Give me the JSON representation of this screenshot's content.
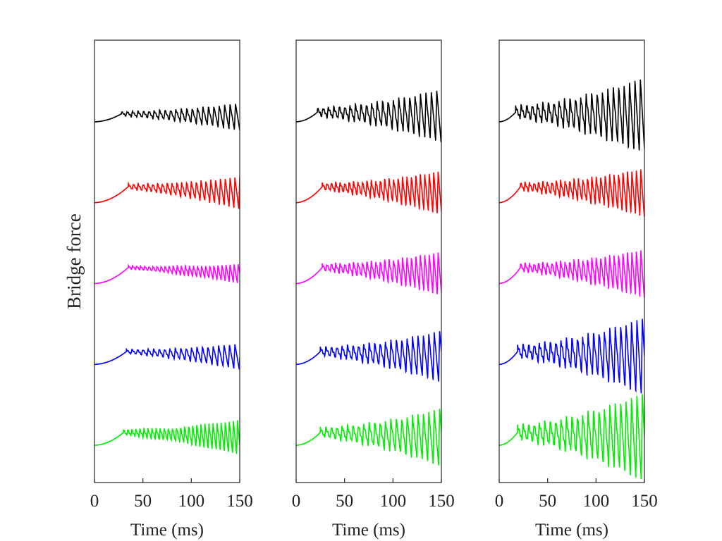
{
  "chart_data": {
    "type": "line",
    "ylabel": "Bridge force",
    "ylim": [
      -0.46,
      5.01
    ],
    "xlim": [
      0,
      150
    ],
    "xticks": [
      "0",
      "50",
      "100",
      "150"
    ],
    "yticks": [],
    "grid": false,
    "legend": "none",
    "note": "Each trace is vertically offset (offset units); signal described by onset time, initial rise, ramp-up oscillation amplitude at 150 ms and period",
    "panels": [
      {
        "xlabel": "Time (ms)",
        "series": [
          {
            "name": "black",
            "color": "#000000",
            "offset": 4,
            "onset_ms": 28,
            "rise": 0.1,
            "amp_end": 0.17,
            "period_ms": 5.6
          },
          {
            "name": "red",
            "color": "#ff0000",
            "offset": 3,
            "onset_ms": 35,
            "rise": 0.2,
            "amp_end": 0.2,
            "period_ms": 5.0
          },
          {
            "name": "magenta",
            "color": "#ff00ff",
            "offset": 2,
            "onset_ms": 35,
            "rise": 0.2,
            "amp_end": 0.12,
            "period_ms": 4.2
          },
          {
            "name": "blue",
            "color": "#0000ff",
            "offset": 1,
            "onset_ms": 33,
            "rise": 0.16,
            "amp_end": 0.16,
            "period_ms": 5.6
          },
          {
            "name": "green",
            "color": "#00ee00",
            "offset": 0,
            "onset_ms": 30,
            "rise": 0.16,
            "amp_end": 0.22,
            "period_ms": 4.2
          }
        ]
      },
      {
        "xlabel": "Time (ms)",
        "series": [
          {
            "name": "black",
            "color": "#000000",
            "offset": 4,
            "onset_ms": 22,
            "rise": 0.12,
            "amp_end": 0.33,
            "period_ms": 5.6
          },
          {
            "name": "red",
            "color": "#ff0000",
            "offset": 3,
            "onset_ms": 27,
            "rise": 0.2,
            "amp_end": 0.27,
            "period_ms": 4.6
          },
          {
            "name": "magenta",
            "color": "#ff00ff",
            "offset": 2,
            "onset_ms": 27,
            "rise": 0.2,
            "amp_end": 0.27,
            "period_ms": 4.6
          },
          {
            "name": "blue",
            "color": "#0000ff",
            "offset": 1,
            "onset_ms": 25,
            "rise": 0.16,
            "amp_end": 0.32,
            "period_ms": 5.6
          },
          {
            "name": "green",
            "color": "#00ee00",
            "offset": 0,
            "onset_ms": 25,
            "rise": 0.16,
            "amp_end": 0.36,
            "period_ms": 5.6
          }
        ]
      },
      {
        "xlabel": "Time (ms)",
        "series": [
          {
            "name": "black",
            "color": "#000000",
            "offset": 4,
            "onset_ms": 17,
            "rise": 0.12,
            "amp_end": 0.47,
            "period_ms": 5.6
          },
          {
            "name": "red",
            "color": "#ff0000",
            "offset": 3,
            "onset_ms": 22,
            "rise": 0.2,
            "amp_end": 0.3,
            "period_ms": 4.6
          },
          {
            "name": "magenta",
            "color": "#ff00ff",
            "offset": 2,
            "onset_ms": 22,
            "rise": 0.2,
            "amp_end": 0.3,
            "period_ms": 4.6
          },
          {
            "name": "blue",
            "color": "#0000ff",
            "offset": 1,
            "onset_ms": 19,
            "rise": 0.16,
            "amp_end": 0.48,
            "period_ms": 5.6
          },
          {
            "name": "green",
            "color": "#00ee00",
            "offset": 0,
            "onset_ms": 19,
            "rise": 0.16,
            "amp_end": 0.55,
            "period_ms": 5.6
          }
        ]
      }
    ]
  }
}
